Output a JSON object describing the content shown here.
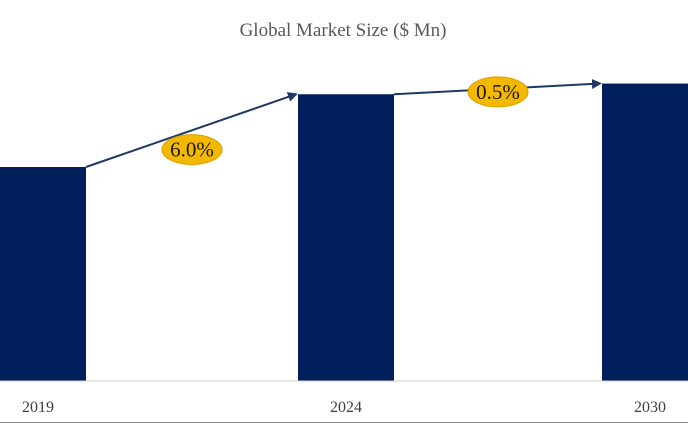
{
  "chart_data": {
    "type": "bar",
    "title": "Global Market Size ($ Mn)",
    "xlabel": "",
    "ylabel": "",
    "categories": [
      "2019",
      "2024",
      "2030"
    ],
    "values": [
      100,
      134,
      139
    ],
    "ylim": [
      0,
      150
    ],
    "grid": false,
    "colors": {
      "bar": "#001f5b",
      "arrow": "#1f3864",
      "badge": "#f5b800",
      "badge_border": "#d9a300"
    },
    "annotations": [
      {
        "type": "cagr",
        "from": "2019",
        "to": "2024",
        "label": "6.0%"
      },
      {
        "type": "cagr",
        "from": "2024",
        "to": "2030",
        "label": "0.5%"
      }
    ]
  }
}
